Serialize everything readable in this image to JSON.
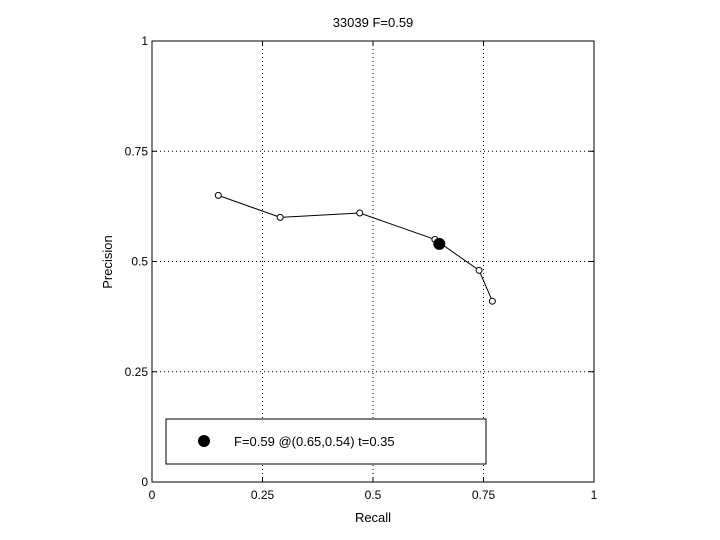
{
  "chart_data": {
    "type": "line",
    "title": "33039 F=0.59",
    "xlabel": "Recall",
    "ylabel": "Precision",
    "xlim": [
      0,
      1
    ],
    "ylim": [
      0,
      1
    ],
    "grid": true,
    "x_ticks": [
      "0",
      "0.25",
      "0.5",
      "0.75",
      "1"
    ],
    "y_ticks": [
      "0",
      "0.25",
      "0.5",
      "0.75",
      "1"
    ],
    "series": [
      {
        "x": [
          0.15,
          0.29,
          0.47,
          0.64,
          0.74,
          0.77
        ],
        "y": [
          0.65,
          0.6,
          0.61,
          0.55,
          0.48,
          0.41
        ]
      }
    ],
    "best_point": {
      "x": 0.65,
      "y": 0.54
    },
    "legend": {
      "placement": "bottom-left",
      "label": "F=0.59 @(0.65,0.54) t=0.35"
    }
  }
}
